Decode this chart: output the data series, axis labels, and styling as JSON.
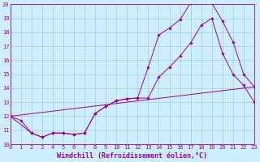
{
  "background_color": "#cceeff",
  "grid_color": "#aacccc",
  "line_color": "#990099",
  "xlim": [
    0,
    23
  ],
  "ylim": [
    10,
    20
  ],
  "xtick_labels": [
    "0",
    "1",
    "2",
    "3",
    "4",
    "5",
    "6",
    "7",
    "8",
    "9",
    "10",
    "11",
    "12",
    "13",
    "14",
    "15",
    "16",
    "17",
    "18",
    "19",
    "20",
    "21",
    "22",
    "23"
  ],
  "xtick_vals": [
    0,
    1,
    2,
    3,
    4,
    5,
    6,
    7,
    8,
    9,
    10,
    11,
    12,
    13,
    14,
    15,
    16,
    17,
    18,
    19,
    20,
    21,
    22,
    23
  ],
  "ytick_vals": [
    10,
    11,
    12,
    13,
    14,
    15,
    16,
    17,
    18,
    19,
    20
  ],
  "ytick_labels": [
    "10",
    "11",
    "12",
    "13",
    "14",
    "15",
    "16",
    "17",
    "18",
    "19",
    "20"
  ],
  "xlabel": "Windchill (Refroidissement éolien,°C)",
  "series1_x": [
    0,
    1,
    2,
    3,
    4,
    5,
    6,
    7,
    8,
    9,
    10,
    11,
    12,
    13,
    14,
    15,
    16,
    17,
    18,
    19,
    20,
    21,
    22,
    23
  ],
  "series1_y": [
    12.0,
    11.7,
    10.8,
    10.5,
    10.8,
    10.8,
    10.7,
    10.8,
    12.2,
    12.7,
    13.1,
    13.25,
    13.3,
    15.5,
    17.8,
    18.3,
    18.9,
    20.1,
    20.15,
    20.1,
    18.8,
    17.3,
    15.0,
    14.1
  ],
  "series2_x": [
    0,
    2,
    3,
    4,
    5,
    6,
    7,
    8,
    9,
    10,
    11,
    12,
    13,
    14,
    15,
    16,
    17,
    18,
    19,
    20,
    21,
    22,
    23
  ],
  "series2_y": [
    12.0,
    10.8,
    10.5,
    10.8,
    10.8,
    10.7,
    10.8,
    12.2,
    12.7,
    13.1,
    13.25,
    13.3,
    13.3,
    14.8,
    15.5,
    16.3,
    17.25,
    18.5,
    19.0,
    16.5,
    15.0,
    14.2,
    13.0
  ],
  "series3_x": [
    0,
    23
  ],
  "series3_y": [
    12.0,
    14.1
  ],
  "tick_fontsize": 5,
  "label_fontsize": 6
}
